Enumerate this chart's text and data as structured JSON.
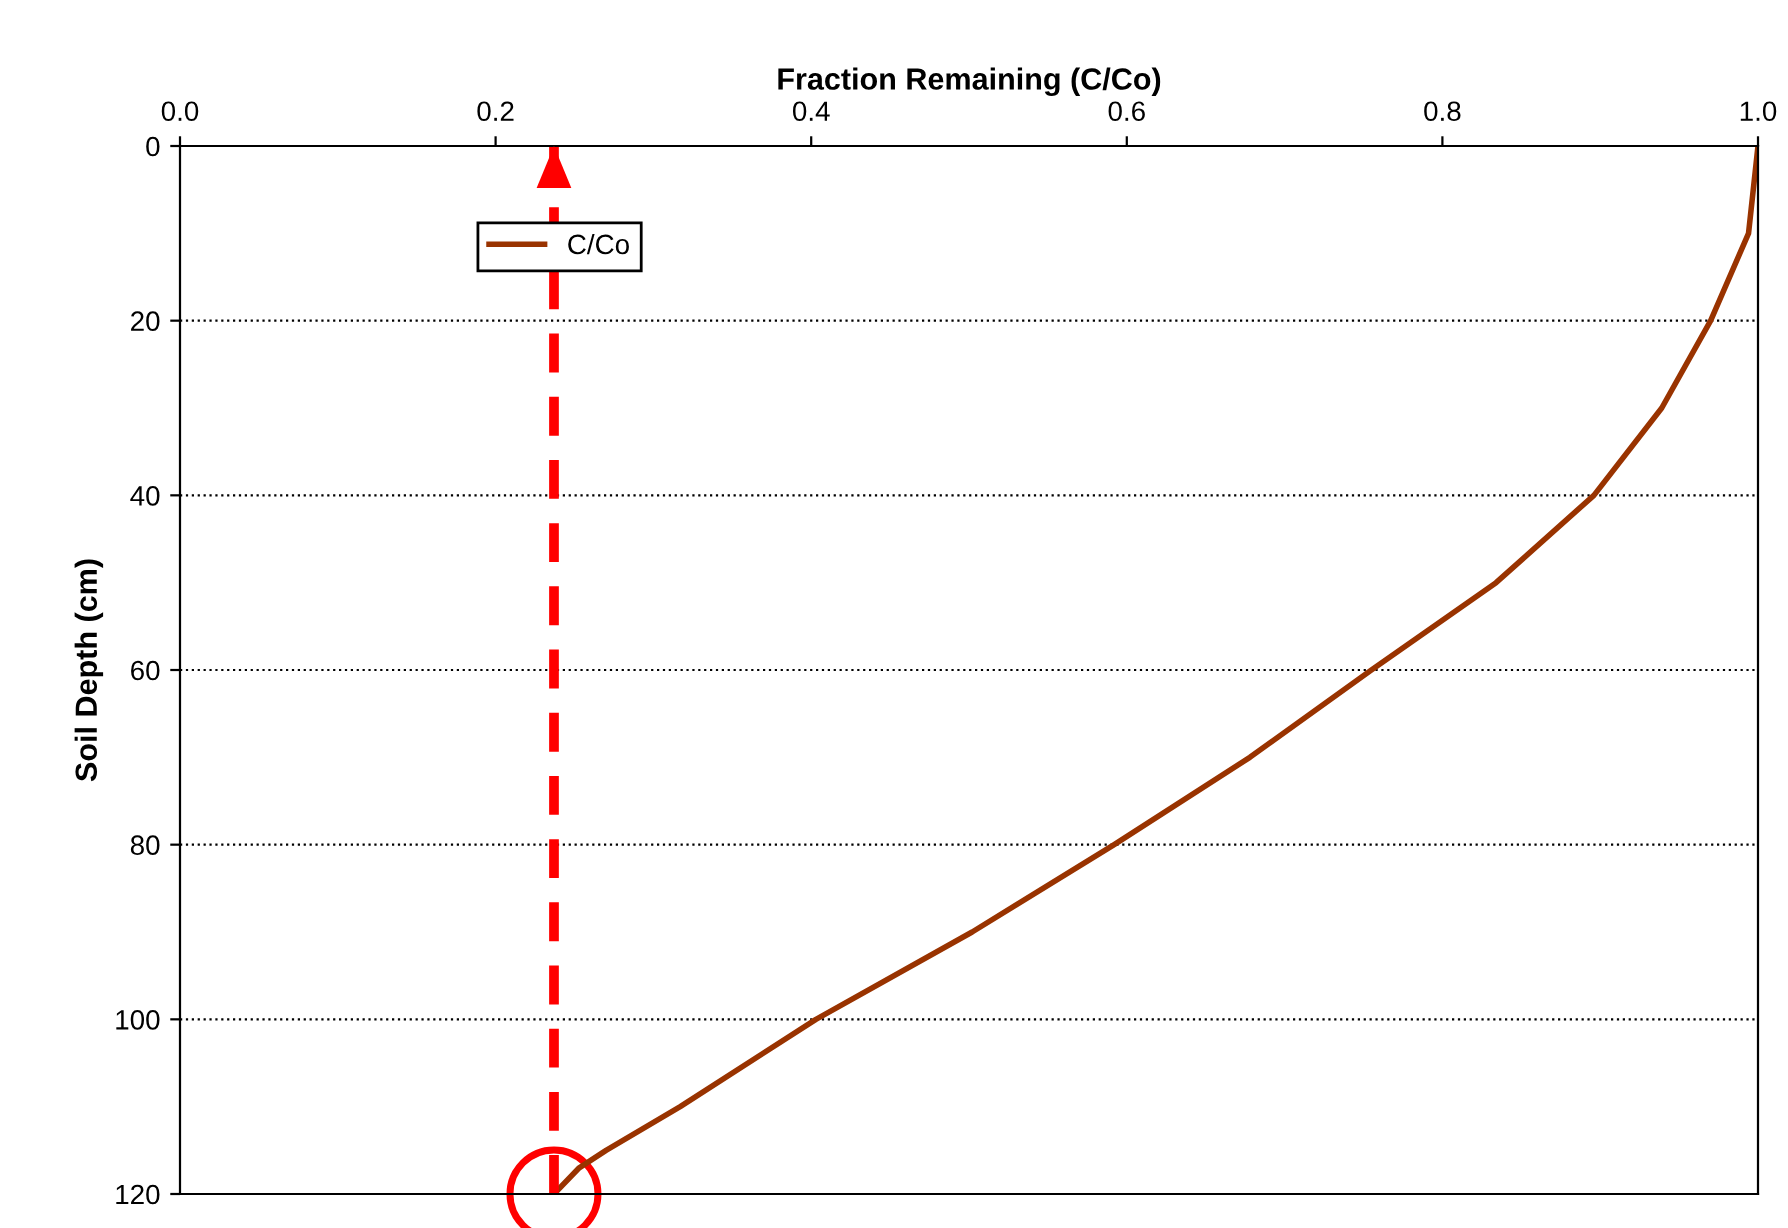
{
  "chart_data": {
    "type": "line",
    "xlabel": "Fraction Remaining (C/Co)",
    "ylabel": "Soil Depth (cm)",
    "xlim": [
      0,
      1
    ],
    "ylim": [
      120,
      0
    ],
    "xticks": [
      {
        "value": 0,
        "label": "0.0"
      },
      {
        "value": 0.2,
        "label": "0.2"
      },
      {
        "value": 0.4,
        "label": "0.4"
      },
      {
        "value": 0.6,
        "label": "0.6"
      },
      {
        "value": 0.8,
        "label": "0.8"
      },
      {
        "value": 1,
        "label": "1.0"
      }
    ],
    "yticks": [
      0,
      20,
      40,
      60,
      80,
      100,
      120
    ],
    "grid": "y",
    "ref_lines": [
      {
        "axis": "x",
        "value": 0.237,
        "color": "#ff0000",
        "line_style": "dashed"
      }
    ],
    "legend": "top left",
    "marker": "none",
    "line_style": "solid",
    "series": [
      {
        "name": "C/Co",
        "color": "#993300",
        "x": [
          1.0,
          0.994,
          0.97,
          0.939,
          0.896,
          0.834,
          0.755,
          0.678,
          0.592,
          0.502,
          0.403,
          0.317,
          0.27,
          0.253,
          0.237
        ],
        "values": [
          0,
          10,
          20,
          30,
          40,
          50,
          60,
          70,
          80,
          90,
          100,
          110,
          115,
          117,
          120
        ]
      }
    ]
  }
}
